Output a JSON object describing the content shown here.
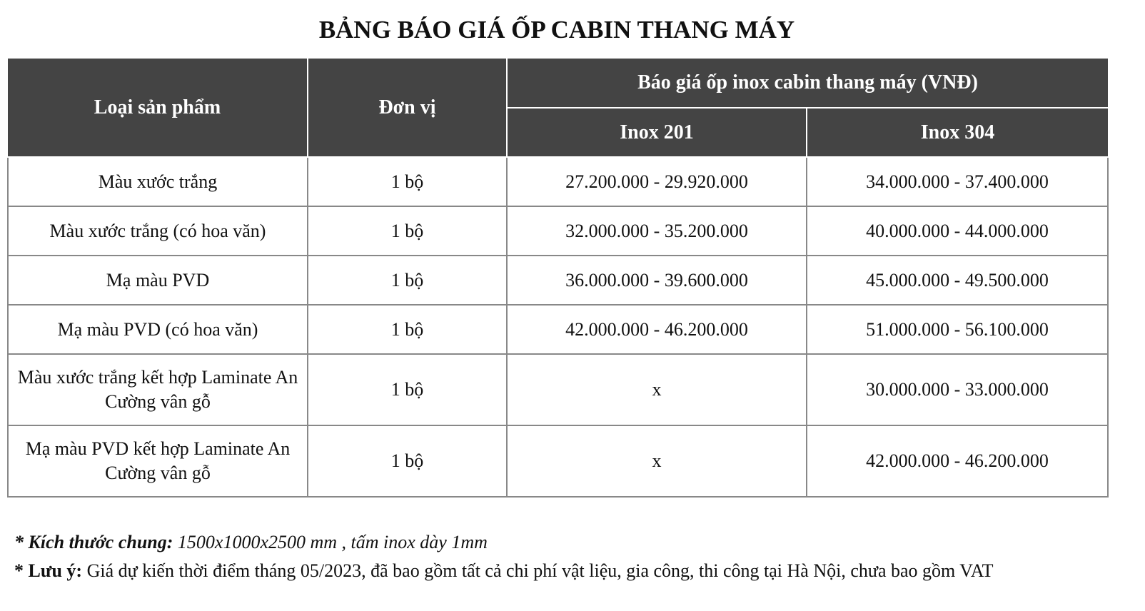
{
  "title": "BẢNG BÁO GIÁ ỐP CABIN THANG MÁY",
  "table": {
    "headers": {
      "product": "Loại sản phẩm",
      "unit": "Đơn vị",
      "price_group": "Báo giá ốp inox cabin thang máy (VNĐ)",
      "inox201": "Inox 201",
      "inox304": "Inox 304"
    },
    "rows": [
      {
        "product": "Màu xước trắng",
        "unit": "1 bộ",
        "inox201": "27.200.000 - 29.920.000",
        "inox304": "34.000.000 - 37.400.000"
      },
      {
        "product": "Màu xước trắng (có hoa văn)",
        "unit": "1 bộ",
        "inox201": "32.000.000 - 35.200.000",
        "inox304": "40.000.000 - 44.000.000"
      },
      {
        "product": "Mạ màu PVD",
        "unit": "1 bộ",
        "inox201": "36.000.000 - 39.600.000",
        "inox304": "45.000.000 - 49.500.000"
      },
      {
        "product": "Mạ màu PVD (có hoa văn)",
        "unit": "1 bộ",
        "inox201": "42.000.000 - 46.200.000",
        "inox304": "51.000.000 - 56.100.000"
      },
      {
        "product": "Màu xước trắng kết hợp Laminate An Cường vân gỗ",
        "unit": "1 bộ",
        "inox201": "x",
        "inox304": "30.000.000 - 33.000.000"
      },
      {
        "product": "Mạ màu PVD kết hợp Laminate An Cường vân gỗ",
        "unit": "1 bộ",
        "inox201": "x",
        "inox304": "42.000.000 - 46.200.000"
      }
    ]
  },
  "notes": {
    "size_label": "* Kích thước chung:",
    "size_text": " 1500x1000x2500 mm , tấm inox dày 1mm",
    "note_label": "* Lưu ý:",
    "note_text": " Giá dự kiến thời điểm tháng 05/2023, đã bao gồm tất cả chi phí vật liệu, gia công, thi công tại Hà Nội, chưa bao gồm VAT"
  },
  "colors": {
    "header_bg": "#444444",
    "header_text": "#ffffff",
    "border": "#888888"
  }
}
